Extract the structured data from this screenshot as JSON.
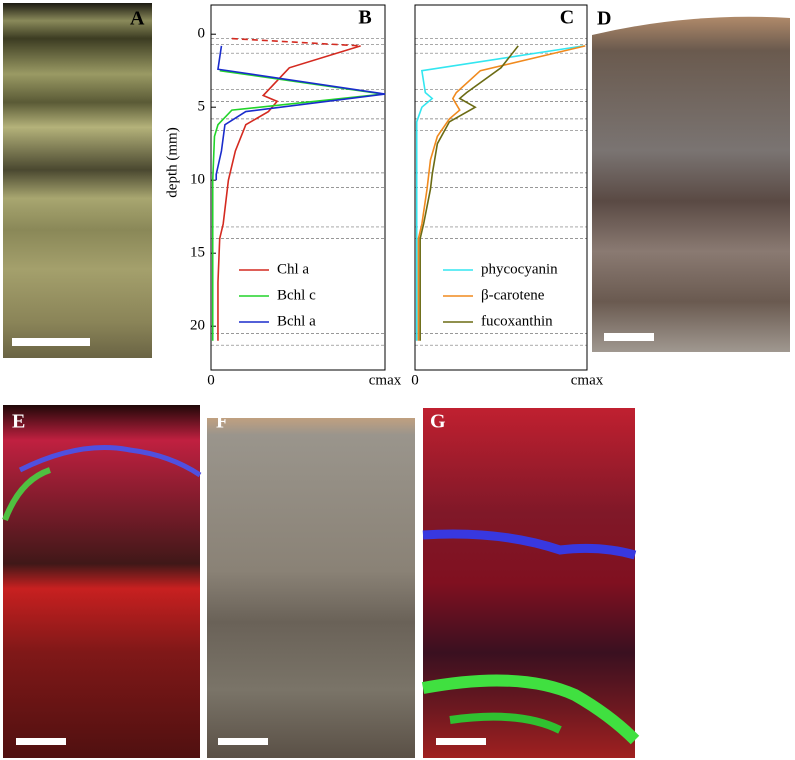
{
  "panel_labels": [
    "A",
    "D",
    "E",
    "F",
    "G"
  ],
  "chart_data": [
    {
      "type": "line",
      "panel": "B",
      "y_label": "depth (mm)",
      "inverted_y": true,
      "ylim": [
        -2,
        23
      ],
      "yticks": [
        0,
        5,
        10,
        15,
        20
      ],
      "xlim": [
        0,
        1
      ],
      "xticks": [
        0,
        {
          "value": 1,
          "label": "cmax"
        }
      ],
      "layer_boundaries": [
        0.3,
        0.7,
        1.3,
        3.8,
        4.6,
        5.8,
        6.6,
        9.5,
        10.5,
        13.2,
        14.0,
        20.5,
        21.3
      ],
      "legend": "lower right",
      "series": [
        {
          "name": "Chl a",
          "color": "#d42a20",
          "dashed_segments": [
            0
          ],
          "depth": [
            0.3,
            0.8,
            2.3,
            4.2,
            4.6,
            5.3,
            6.2,
            8.0,
            10,
            13,
            14,
            17,
            21
          ],
          "values": [
            0.12,
            0.86,
            0.45,
            0.3,
            0.38,
            0.33,
            0.2,
            0.14,
            0.1,
            0.07,
            0.05,
            0.04,
            0.04
          ]
        },
        {
          "name": "Bchl c",
          "color": "#22d42a",
          "depth": [
            2.5,
            4.1,
            5.2,
            6.2,
            7,
            10,
            21
          ],
          "values": [
            0.05,
            0.99,
            0.12,
            0.04,
            0.02,
            0.01,
            0.01
          ]
        },
        {
          "name": "Bchl a",
          "color": "#1a2ccc",
          "depth": [
            0.8,
            2.4,
            4.1,
            5.3,
            6.2,
            8,
            9.6,
            10
          ],
          "values": [
            0.06,
            0.04,
            1.0,
            0.2,
            0.08,
            0.06,
            0.03,
            0.03
          ]
        }
      ]
    },
    {
      "type": "line",
      "panel": "C",
      "inverted_y": true,
      "ylim": [
        -2,
        23
      ],
      "xlim": [
        0,
        1
      ],
      "xticks": [
        0,
        {
          "value": 1,
          "label": "cmax"
        }
      ],
      "layer_boundaries": [
        0.3,
        0.7,
        1.3,
        3.8,
        4.6,
        5.8,
        6.6,
        9.5,
        10.5,
        13.2,
        14.0,
        20.5,
        21.3
      ],
      "legend": "lower right",
      "series": [
        {
          "name": "phycocyanin",
          "color": "#33e6f0",
          "depth": [
            0.8,
            2.5,
            4.0,
            4.4,
            5,
            6,
            21
          ],
          "values": [
            0.98,
            0.04,
            0.06,
            0.1,
            0.04,
            0.01,
            0.01
          ]
        },
        {
          "name": "β-carotene",
          "color": "#f08a1e",
          "depth": [
            0.8,
            2.5,
            4.0,
            4.4,
            5.2,
            5.8,
            7,
            8.6,
            9.6,
            10.6,
            13,
            14,
            21
          ],
          "values": [
            0.99,
            0.38,
            0.24,
            0.22,
            0.26,
            0.2,
            0.13,
            0.09,
            0.08,
            0.07,
            0.04,
            0.02,
            0.02
          ]
        },
        {
          "name": "fucoxanthin",
          "color": "#6b6b14",
          "depth": [
            0.8,
            2.3,
            4.0,
            4.4,
            5,
            6,
            7.5,
            9.6,
            10.6,
            13,
            14,
            21
          ],
          "values": [
            0.6,
            0.5,
            0.3,
            0.26,
            0.35,
            0.2,
            0.13,
            0.1,
            0.09,
            0.05,
            0.03,
            0.03
          ]
        }
      ]
    }
  ]
}
